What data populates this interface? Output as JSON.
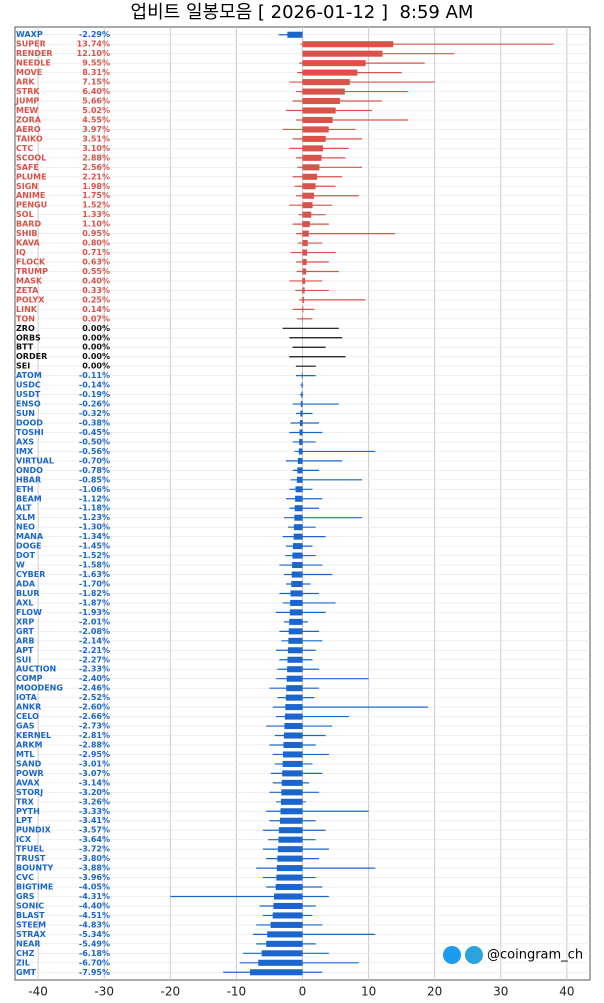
{
  "chart_data": {
    "type": "range-bar",
    "title": "업비트 일봉모음 [ 2026-01-12 ]  8:59 AM",
    "watermark": "@coingram_ch",
    "categories": [
      "WAXP",
      "SUPER",
      "RENDER",
      "NEEDLE",
      "MOVE",
      "ARK",
      "STRK",
      "JUMP",
      "MEW",
      "ZORA",
      "AERO",
      "TAIKO",
      "CTC",
      "SCOOL",
      "SAFE",
      "PLUME",
      "SIGN",
      "ANIME",
      "PENGU",
      "SOL",
      "BARD",
      "SHIB",
      "KAVA",
      "IQ",
      "FLOCK",
      "TRUMP",
      "MASK",
      "ZETA",
      "POLYX",
      "LINK",
      "TON",
      "ZRO",
      "ORBS",
      "BTT",
      "ORDER",
      "SEI",
      "ATOM",
      "USDC",
      "USDT",
      "ENSO",
      "SUN",
      "DOOD",
      "TOSHI",
      "AXS",
      "IMX",
      "VIRTUAL",
      "ONDO",
      "HBAR",
      "ETH",
      "BEAM",
      "ALT",
      "XLM",
      "NEO",
      "MANA",
      "DOGE",
      "DOT",
      "W",
      "CYBER",
      "ADA",
      "BLUR",
      "AXL",
      "FLOW",
      "XRP",
      "GRT",
      "ARB",
      "APT",
      "SUI",
      "AUCTION",
      "COMP",
      "MOODENG",
      "IOTA",
      "ANKR",
      "CELO",
      "GAS",
      "KERNEL",
      "ARKM",
      "MTL",
      "SAND",
      "POWR",
      "AVAX",
      "STORJ",
      "TRX",
      "PYTH",
      "LPT",
      "PUNDIX",
      "ICX",
      "TFUEL",
      "TRUST",
      "BOUNTY",
      "CVC",
      "BIGTIME",
      "GRS",
      "SONIC",
      "BLAST",
      "STEEM",
      "STRAX",
      "NEAR",
      "CHZ",
      "ZIL",
      "GMT"
    ],
    "values": [
      -2.29,
      13.74,
      12.1,
      9.55,
      8.31,
      7.15,
      6.4,
      5.66,
      5.02,
      4.55,
      3.97,
      3.51,
      3.1,
      2.88,
      2.56,
      2.21,
      1.98,
      1.75,
      1.52,
      1.33,
      1.1,
      0.95,
      0.8,
      0.71,
      0.63,
      0.55,
      0.4,
      0.33,
      0.25,
      0.14,
      0.07,
      0.0,
      0.0,
      0.0,
      0.0,
      0.0,
      -0.11,
      -0.14,
      -0.19,
      -0.26,
      -0.32,
      -0.38,
      -0.45,
      -0.5,
      -0.56,
      -0.7,
      -0.78,
      -0.85,
      -1.06,
      -1.12,
      -1.18,
      -1.23,
      -1.3,
      -1.34,
      -1.45,
      -1.52,
      -1.58,
      -1.63,
      -1.7,
      -1.82,
      -1.87,
      -1.93,
      -2.01,
      -2.08,
      -2.14,
      -2.21,
      -2.27,
      -2.33,
      -2.4,
      -2.46,
      -2.52,
      -2.6,
      -2.66,
      -2.73,
      -2.81,
      -2.88,
      -2.95,
      -3.01,
      -3.07,
      -3.14,
      -3.2,
      -3.26,
      -3.33,
      -3.41,
      -3.57,
      -3.64,
      -3.72,
      -3.8,
      -3.88,
      -3.96,
      -4.05,
      -4.31,
      -4.4,
      -4.51,
      -4.83,
      -5.34,
      -5.49,
      -6.18,
      -6.7,
      -7.95
    ],
    "value_labels": [
      "-2.29%",
      "13.74%",
      "12.10%",
      "9.55%",
      "8.31%",
      "7.15%",
      "6.40%",
      "5.66%",
      "5.02%",
      "4.55%",
      "3.97%",
      "3.51%",
      "3.10%",
      "2.88%",
      "2.56%",
      "2.21%",
      "1.98%",
      "1.75%",
      "1.52%",
      "1.33%",
      "1.10%",
      "0.95%",
      "0.80%",
      "0.71%",
      "0.63%",
      "0.55%",
      "0.40%",
      "0.33%",
      "0.25%",
      "0.14%",
      "0.07%",
      "0.00%",
      "0.00%",
      "0.00%",
      "0.00%",
      "0.00%",
      "-0.11%",
      "-0.14%",
      "-0.19%",
      "-0.26%",
      "-0.32%",
      "-0.38%",
      "-0.45%",
      "-0.50%",
      "-0.56%",
      "-0.70%",
      "-0.78%",
      "-0.85%",
      "-1.06%",
      "-1.12%",
      "-1.18%",
      "-1.23%",
      "-1.30%",
      "-1.34%",
      "-1.45%",
      "-1.52%",
      "-1.58%",
      "-1.63%",
      "-1.70%",
      "-1.82%",
      "-1.87%",
      "-1.93%",
      "-2.01%",
      "-2.08%",
      "-2.14%",
      "-2.21%",
      "-2.27%",
      "-2.33%",
      "-2.40%",
      "-2.46%",
      "-2.52%",
      "-2.60%",
      "-2.66%",
      "-2.73%",
      "-2.81%",
      "-2.88%",
      "-2.95%",
      "-3.01%",
      "-3.07%",
      "-3.14%",
      "-3.20%",
      "-3.26%",
      "-3.33%",
      "-3.41%",
      "-3.57%",
      "-3.64%",
      "-3.72%",
      "-3.80%",
      "-3.88%",
      "-3.96%",
      "-4.05%",
      "-4.31%",
      "-4.40%",
      "-4.51%",
      "-4.83%",
      "-5.34%",
      "-5.49%",
      "-6.18%",
      "-6.70%",
      "-7.95%"
    ],
    "lows": [
      -3.6,
      -0.3,
      0.0,
      -0.5,
      -0.8,
      -2.0,
      -1.0,
      -1.5,
      -2.5,
      -1.0,
      -3.0,
      -1.5,
      -2.0,
      -1.0,
      -0.8,
      -1.5,
      -1.2,
      -1.0,
      -2.0,
      -0.6,
      -1.5,
      -1.0,
      -0.7,
      -1.8,
      -1.0,
      -0.9,
      -2.0,
      -1.1,
      -0.5,
      -1.5,
      -0.8,
      -3.0,
      -2.0,
      -1.5,
      -2.0,
      -1.0,
      -1.0,
      -0.3,
      -0.4,
      -1.5,
      -1.0,
      -1.8,
      -2.0,
      -1.5,
      -1.2,
      -2.5,
      -1.5,
      -1.8,
      -2.0,
      -2.5,
      -2.0,
      -2.8,
      -2.2,
      -3.0,
      -2.5,
      -2.6,
      -3.5,
      -2.8,
      -2.5,
      -3.5,
      -3.0,
      -4.0,
      -2.8,
      -3.5,
      -3.2,
      -4.0,
      -3.5,
      -3.8,
      -4.0,
      -5.0,
      -3.8,
      -4.5,
      -4.0,
      -5.5,
      -4.2,
      -5.0,
      -4.5,
      -4.2,
      -4.8,
      -4.5,
      -5.0,
      -4.0,
      -5.5,
      -5.0,
      -6.0,
      -5.2,
      -6.0,
      -5.5,
      -7.0,
      -6.0,
      -5.5,
      -20.0,
      -6.5,
      -6.0,
      -7.0,
      -7.5,
      -7.0,
      -9.0,
      -9.5,
      -12.0
    ],
    "highs": [
      -0.5,
      38.0,
      23.0,
      18.5,
      15.0,
      20.0,
      16.0,
      12.0,
      10.5,
      16.0,
      8.0,
      9.0,
      7.0,
      6.5,
      9.0,
      6.0,
      5.0,
      8.5,
      4.5,
      3.5,
      4.0,
      14.0,
      3.0,
      5.0,
      4.0,
      5.5,
      3.0,
      4.0,
      9.5,
      1.8,
      1.5,
      5.5,
      6.0,
      3.5,
      6.5,
      2.0,
      2.0,
      0.1,
      0.1,
      5.5,
      1.5,
      2.5,
      3.0,
      2.0,
      11.0,
      6.0,
      2.5,
      9.0,
      1.5,
      3.0,
      2.5,
      9.0,
      2.0,
      3.5,
      1.5,
      2.0,
      3.0,
      4.5,
      1.2,
      2.5,
      5.0,
      3.5,
      0.8,
      2.5,
      3.0,
      2.0,
      1.5,
      2.5,
      10.0,
      2.5,
      1.8,
      19.0,
      7.0,
      4.5,
      3.5,
      2.0,
      4.0,
      1.5,
      3.0,
      1.0,
      2.5,
      0.5,
      10.0,
      2.0,
      3.5,
      2.0,
      4.0,
      2.5,
      11.0,
      2.0,
      3.0,
      4.0,
      2.0,
      1.5,
      3.0,
      11.0,
      2.0,
      4.0,
      8.5,
      3.0
    ],
    "color_up": "#d9534a",
    "color_flat": "#111111",
    "color_down": "#1a66cc",
    "xlim": [
      -43.5,
      43.5
    ],
    "xticks": [
      -40,
      -30,
      -20,
      -10,
      0,
      10,
      20,
      30,
      40
    ],
    "grid": true
  }
}
